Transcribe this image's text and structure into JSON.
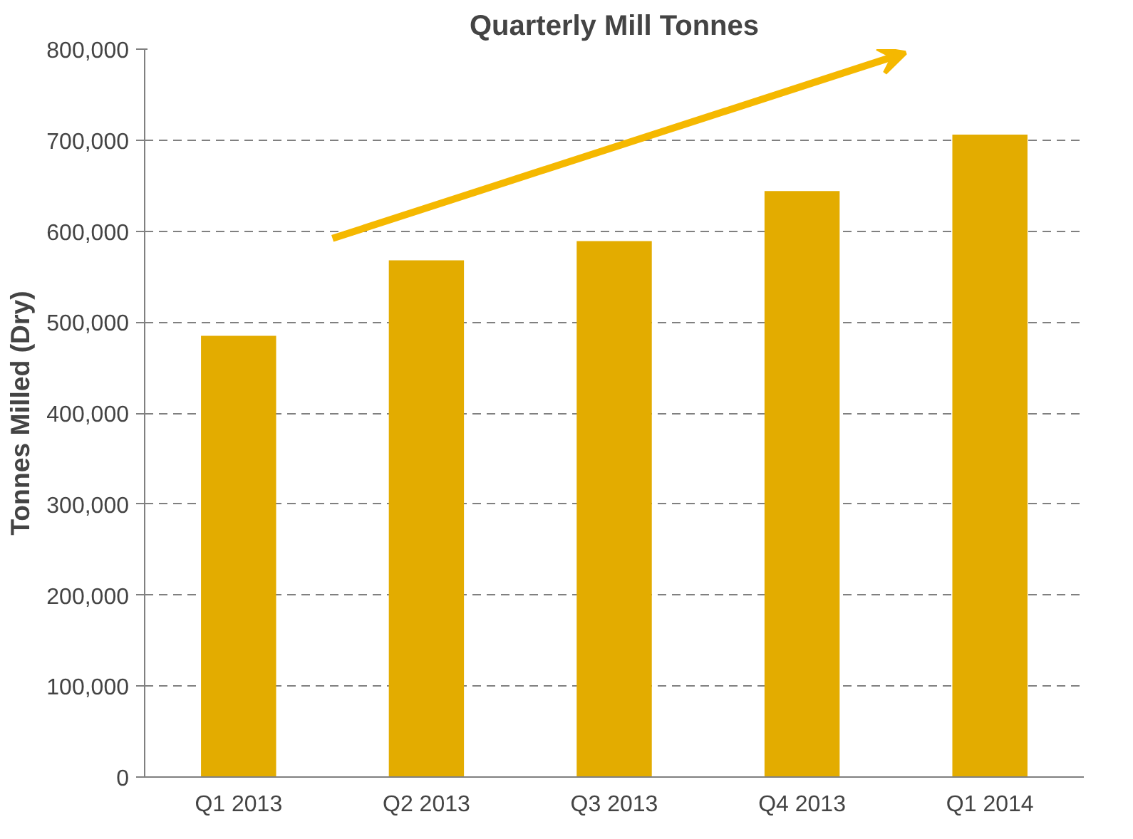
{
  "chart_data": {
    "type": "bar",
    "title": "Quarterly Mill Tonnes",
    "ylabel": "Tonnes Milled (Dry)",
    "categories": [
      "Q1 2013",
      "Q2 2013",
      "Q3 2013",
      "Q4 2013",
      "Q1 2014"
    ],
    "values": [
      485000,
      568000,
      589000,
      644000,
      706000
    ],
    "color": "#e3ac00",
    "ylim": [
      0,
      800000
    ],
    "yticks": [
      {
        "value": 0,
        "label": "0"
      },
      {
        "value": 100000,
        "label": "100,000"
      },
      {
        "value": 200000,
        "label": "200,000"
      },
      {
        "value": 300000,
        "label": "300,000"
      },
      {
        "value": 400000,
        "label": "400,000"
      },
      {
        "value": 500000,
        "label": "500,000"
      },
      {
        "value": 600000,
        "label": "600,000"
      },
      {
        "value": 700000,
        "label": "700,000"
      },
      {
        "value": 800000,
        "label": "800,000"
      }
    ],
    "grid": "y"
  }
}
